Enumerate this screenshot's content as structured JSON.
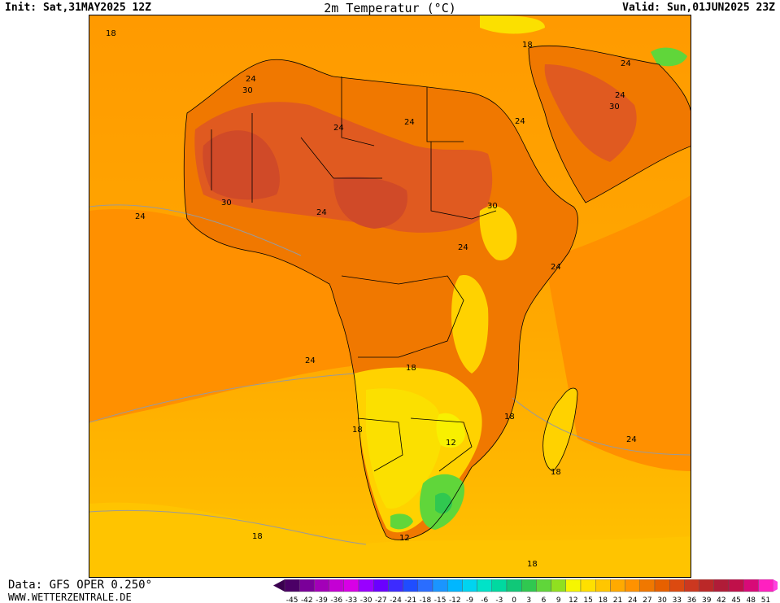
{
  "header": {
    "init": "Init: Sat,31MAY2025 12Z",
    "title": "2m Temperatur (°C)",
    "valid": "Valid: Sun,01JUN2025 23Z"
  },
  "footer": {
    "source": "Data: GFS OPER 0.250°",
    "site": "WWW.WETTERZENTRALE.DE"
  },
  "legend": {
    "ticks": [
      "-45",
      "-42",
      "-39",
      "-36",
      "-33",
      "-30",
      "-27",
      "-24",
      "-21",
      "-18",
      "-15",
      "-12",
      "-9",
      "-6",
      "-3",
      "0",
      "3",
      "6",
      "9",
      "12",
      "15",
      "18",
      "21",
      "24",
      "27",
      "30",
      "33",
      "36",
      "39",
      "42",
      "45",
      "48",
      "51"
    ],
    "colors": [
      "#4b0066",
      "#7a0099",
      "#a300b8",
      "#c400d4",
      "#d800e6",
      "#9900ff",
      "#6a00ff",
      "#3d2bff",
      "#1f4dff",
      "#2a6dff",
      "#1a95ff",
      "#00b7ff",
      "#00d4f0",
      "#00e3c8",
      "#00d9a0",
      "#10c878",
      "#30c850",
      "#60d63a",
      "#90e020",
      "#f6f600",
      "#ffe000",
      "#ffc600",
      "#ffaa00",
      "#ff9200",
      "#f07800",
      "#e66000",
      "#dc4a10",
      "#cc3820",
      "#bb2828",
      "#b01c38",
      "#c0104a",
      "#d80a78",
      "#ff20c0"
    ],
    "below_color": "#3a004f",
    "above_color": "#ff40e0"
  },
  "map": {
    "colors": {
      "ocean_south": "#ffc400",
      "ocean_mid": "#ffa800",
      "ocean_warm": "#ff9000",
      "land_hot": "#f07800",
      "land_very_hot": "#e05a20",
      "land_extreme": "#d04a28",
      "land_mild": "#ffd200",
      "land_cool": "#fbe000",
      "land_cold": "#f8f000",
      "cold_pocket": "#60d63a",
      "cold_core": "#30c850",
      "borders": "#000000",
      "isotherm": "#9a9a9a"
    },
    "contour_labels": [
      {
        "text": "18",
        "name": "contour-label-18-northwest"
      },
      {
        "text": "24",
        "name": "contour-label-24-sahara-west"
      },
      {
        "text": "30",
        "name": "contour-label-30-mauritania"
      },
      {
        "text": "24",
        "name": "contour-label-24-sahel"
      },
      {
        "text": "24",
        "name": "contour-label-24-libya"
      },
      {
        "text": "24",
        "name": "contour-label-24-egypt"
      },
      {
        "text": "18",
        "name": "contour-label-18-eastern-med"
      },
      {
        "text": "24",
        "name": "contour-label-24-arabia"
      },
      {
        "text": "24",
        "name": "contour-label-24-gulf"
      },
      {
        "text": "30",
        "name": "contour-label-30-gulf"
      },
      {
        "text": "30",
        "name": "contour-label-30-senegal"
      },
      {
        "text": "24",
        "name": "contour-label-24-atlantic-north"
      },
      {
        "text": "24",
        "name": "contour-label-24-west-africa"
      },
      {
        "text": "30",
        "name": "contour-label-30-sudan"
      },
      {
        "text": "24",
        "name": "contour-label-24-central-africa"
      },
      {
        "text": "24",
        "name": "contour-label-24-horn"
      },
      {
        "text": "24",
        "name": "contour-label-24-atlantic-mid"
      },
      {
        "text": "18",
        "name": "contour-label-18-angola"
      },
      {
        "text": "18",
        "name": "contour-label-18-namibia"
      },
      {
        "text": "18",
        "name": "contour-label-18-mozambique"
      },
      {
        "text": "12",
        "name": "contour-label-12-botswana"
      },
      {
        "text": "24",
        "name": "contour-label-24-indian-ocean"
      },
      {
        "text": "18",
        "name": "contour-label-18-madagascar"
      },
      {
        "text": "18",
        "name": "contour-label-18-atlantic-south"
      },
      {
        "text": "12",
        "name": "contour-label-12-cape"
      },
      {
        "text": "18",
        "name": "contour-label-18-southern-ocean"
      }
    ]
  }
}
